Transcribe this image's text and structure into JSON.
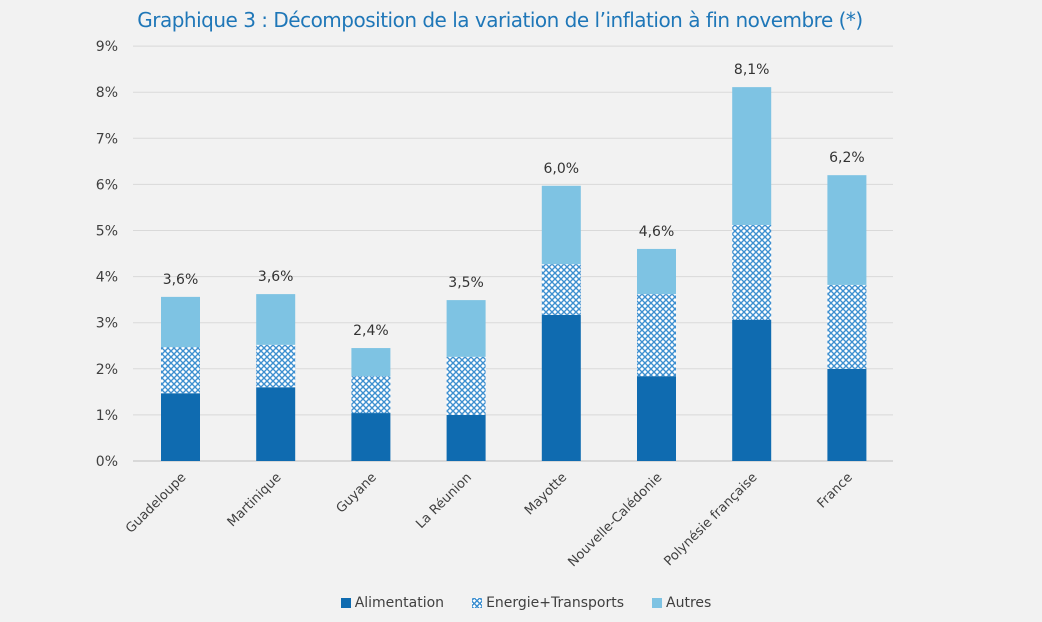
{
  "chart_data": {
    "type": "bar",
    "stacked": true,
    "title": "Graphique 3 : Décomposition de la variation de l’inflation à fin novembre (*)",
    "categories": [
      "Guadeloupe",
      "Martinique",
      "Guyane",
      "La Réunion",
      "Mayotte",
      "Nouvelle-Calédonie",
      "Polynésie française",
      "France"
    ],
    "series": [
      {
        "name": "Alimentation",
        "color": "#0f6bb0",
        "pattern": "solid",
        "values": [
          1.47,
          1.6,
          1.04,
          1.0,
          3.17,
          1.84,
          3.06,
          2.0
        ]
      },
      {
        "name": "Energie+Transports",
        "color": "#5aa0d8",
        "pattern": "crosshatch",
        "values": [
          1.0,
          0.92,
          0.8,
          1.26,
          1.1,
          1.78,
          2.06,
          1.82
        ]
      },
      {
        "name": "Autres",
        "color": "#7ec3e3",
        "pattern": "solid",
        "values": [
          1.09,
          1.1,
          0.61,
          1.23,
          1.7,
          0.98,
          2.99,
          2.38
        ]
      }
    ],
    "totals_labels": [
      "3,6%",
      "3,6%",
      "2,4%",
      "3,5%",
      "6,0%",
      "4,6%",
      "8,1%",
      "6,2%"
    ],
    "totals": [
      3.56,
      3.62,
      2.45,
      3.49,
      5.97,
      4.6,
      8.11,
      6.2
    ],
    "yticks": [
      "0%",
      "1%",
      "2%",
      "3%",
      "4%",
      "5%",
      "6%",
      "7%",
      "8%",
      "9%"
    ],
    "ylim": [
      0,
      9
    ],
    "grid": true,
    "legend": "bottom"
  }
}
